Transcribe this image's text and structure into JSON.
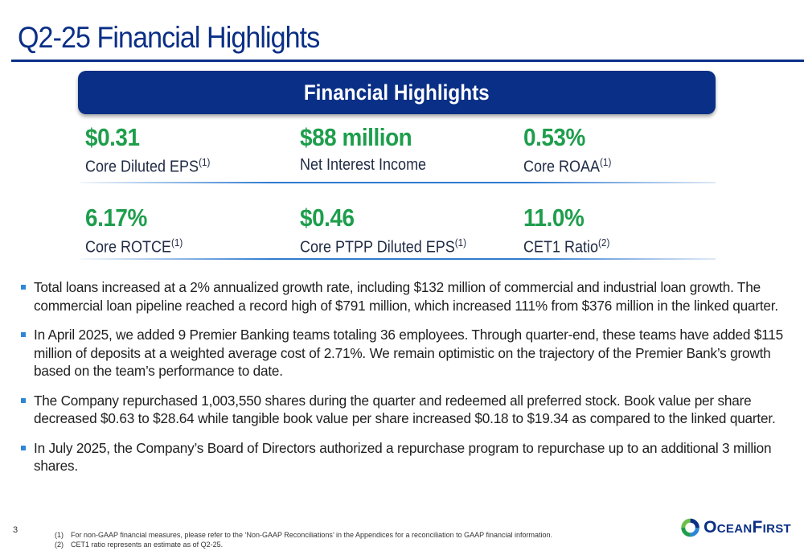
{
  "page": {
    "title": "Q2-25 Financial Highlights",
    "banner": "Financial Highlights",
    "page_number": "3"
  },
  "metrics": [
    {
      "value": "$0.31",
      "label": "Core Diluted EPS",
      "note": "(1)"
    },
    {
      "value": "$88 million",
      "label": "Net Interest Income",
      "note": ""
    },
    {
      "value": "0.53%",
      "label": "Core ROAA",
      "note": "(1)"
    },
    {
      "value": "6.17%",
      "label": "Core ROTCE",
      "note": "(1)"
    },
    {
      "value": "$0.46",
      "label": "Core PTPP Diluted EPS",
      "note": "(1)"
    },
    {
      "value": "11.0%",
      "label": "CET1 Ratio",
      "note": "(2)"
    }
  ],
  "bullets": [
    "Total loans increased at a 2% annualized growth rate, including $132 million of commercial and industrial loan growth. The commercial loan pipeline reached a record high of $791 million, which increased 111% from $376 million in the linked quarter.",
    "In April 2025, we added 9 Premier Banking teams totaling 36 employees. Through quarter-end, these teams have added $115 million of deposits at a weighted average cost of 2.71%. We remain optimistic on the trajectory of the Premier Bank’s growth based on the team’s performance to date.",
    "The Company repurchased 1,003,550 shares during the quarter and redeemed all preferred stock. Book value per share decreased $0.63 to $28.64 while tangible book value per share increased $0.18 to $19.34 as compared to the linked quarter.",
    "In July 2025, the Company’s Board of Directors authorized a repurchase program to repurchase up to an additional 3 million shares."
  ],
  "footnotes": [
    {
      "num": "(1)",
      "text": "For non-GAAP financial measures, please refer to the ‘Non-GAAP Reconciliations’ in the Appendices for a reconciliation to GAAP financial information."
    },
    {
      "num": "(2)",
      "text": "CET1 ratio represents an estimate as of Q2-25."
    }
  ],
  "logo": {
    "big_o": "O",
    "rest1": "CEAN",
    "big_f": "F",
    "rest2": "IRST"
  },
  "colors": {
    "brand_blue": "#0a2f86",
    "metric_green": "#1e9e4c",
    "bullet_blue": "#2f86d6"
  }
}
